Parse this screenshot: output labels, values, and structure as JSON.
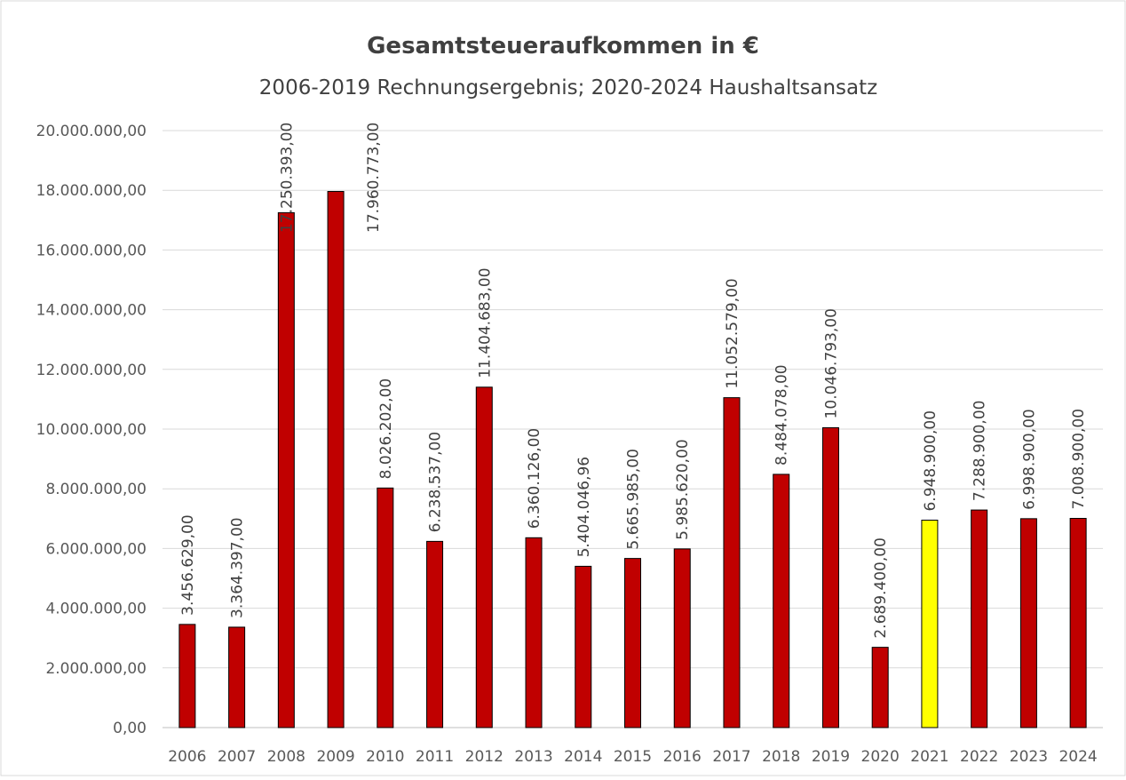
{
  "chart_data": {
    "type": "bar",
    "title": "Gesamtsteueraufkommen in €",
    "subtitle": "2006-2019 Rechnungsergebnis; 2020-2024 Haushaltsansatz",
    "categories": [
      "2006",
      "2007",
      "2008",
      "2009",
      "2010",
      "2011",
      "2012",
      "2013",
      "2014",
      "2015",
      "2016",
      "2017",
      "2018",
      "2019",
      "2020",
      "2021",
      "2022",
      "2023",
      "2024"
    ],
    "values": [
      3456629,
      3364397,
      17250393,
      17960773,
      8026202,
      6238537,
      11404683,
      6360126,
      5404046.96,
      5665985,
      5985620,
      11052579,
      8484078,
      10046793,
      2689400,
      6948900,
      7288900,
      6998900,
      7008900
    ],
    "value_labels": [
      "3.456.629,00",
      "3.364.397,00",
      "17.250.393,00",
      "17.960.773,00",
      "8.026.202,00",
      "6.238.537,00",
      "11.404.683,00",
      "6.360.126,00",
      "5.404.046,96",
      "5.665.985,00",
      "5.985.620,00",
      "11.052.579,00",
      "8.484.078,00",
      "10.046.793,00",
      "2.689.400,00",
      "6.948.900,00",
      "7.288.900,00",
      "6.998.900,00",
      "7.008.900,00"
    ],
    "colors": [
      "#c00000",
      "#c00000",
      "#c00000",
      "#c00000",
      "#c00000",
      "#c00000",
      "#c00000",
      "#c00000",
      "#c00000",
      "#c00000",
      "#c00000",
      "#c00000",
      "#c00000",
      "#c00000",
      "#c00000",
      "#ffff00",
      "#c00000",
      "#c00000",
      "#c00000"
    ],
    "ylim": [
      0,
      20000000
    ],
    "yticks": [
      {
        "value": 0,
        "label": "0,00"
      },
      {
        "value": 2000000,
        "label": "2.000.000,00"
      },
      {
        "value": 4000000,
        "label": "4.000.000,00"
      },
      {
        "value": 6000000,
        "label": "6.000.000,00"
      },
      {
        "value": 8000000,
        "label": "8.000.000,00"
      },
      {
        "value": 10000000,
        "label": "10.000.000,00"
      },
      {
        "value": 12000000,
        "label": "12.000.000,00"
      },
      {
        "value": 14000000,
        "label": "14.000.000,00"
      },
      {
        "value": 16000000,
        "label": "16.000.000,00"
      },
      {
        "value": 18000000,
        "label": "18.000.000,00"
      },
      {
        "value": 20000000,
        "label": "20.000.000,00"
      }
    ],
    "grid": true
  }
}
